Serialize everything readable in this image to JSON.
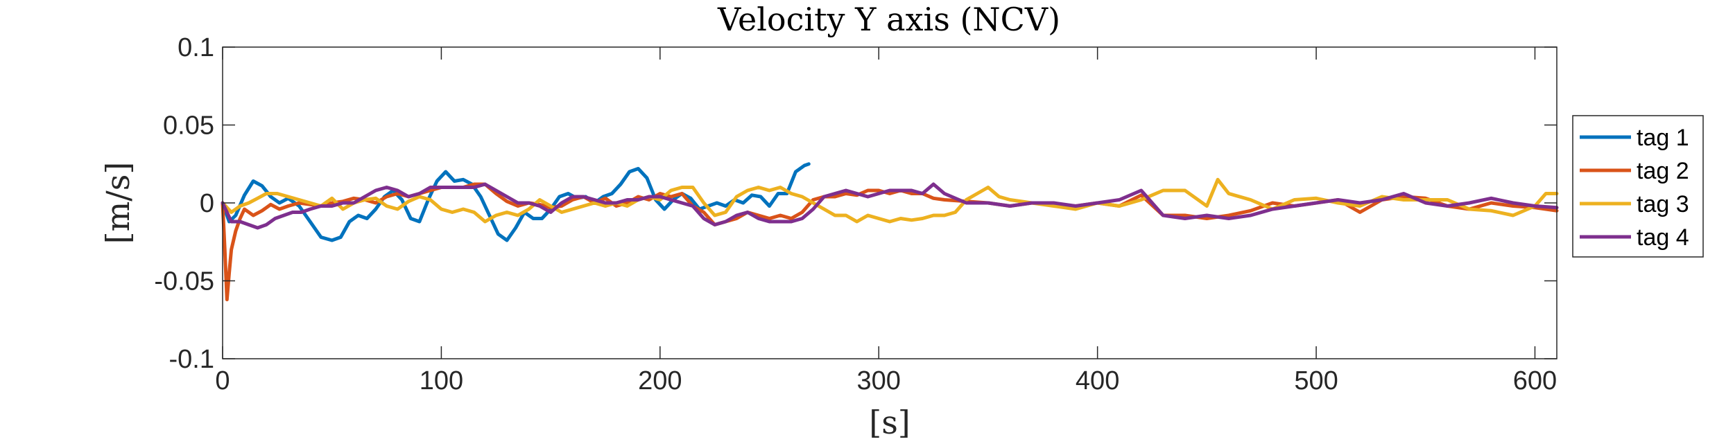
{
  "chart_data": {
    "type": "line",
    "title": "Velocity Y axis (NCV)",
    "xlabel": "[s]",
    "ylabel": "[m/s]",
    "xlim": [
      0,
      610
    ],
    "ylim": [
      -0.1,
      0.1
    ],
    "xticks": [
      0,
      100,
      200,
      300,
      400,
      500,
      600
    ],
    "yticks": [
      -0.1,
      -0.05,
      0,
      0.05,
      0.1
    ],
    "xtick_labels": [
      "0",
      "100",
      "200",
      "300",
      "400",
      "500",
      "600"
    ],
    "ytick_labels": [
      "-0.1",
      "-0.05",
      "0",
      "0.05",
      "0.1"
    ],
    "grid": false,
    "legend_position": "outside-right",
    "series": [
      {
        "name": "tag 1",
        "color": "#0072BD",
        "x": [
          0,
          3,
          6,
          10,
          14,
          18,
          22,
          26,
          30,
          35,
          40,
          45,
          50,
          54,
          58,
          62,
          66,
          70,
          74,
          78,
          82,
          86,
          90,
          94,
          98,
          102,
          106,
          110,
          114,
          118,
          122,
          126,
          130,
          134,
          138,
          142,
          146,
          150,
          154,
          158,
          162,
          166,
          170,
          174,
          178,
          182,
          186,
          190,
          194,
          198,
          202,
          206,
          210,
          214,
          218,
          222,
          226,
          230,
          234,
          238,
          242,
          246,
          250,
          254,
          258,
          262,
          266,
          268
        ],
        "y": [
          0,
          -0.012,
          -0.008,
          0.005,
          0.014,
          0.011,
          0.004,
          0.0,
          0.003,
          -0.002,
          -0.012,
          -0.022,
          -0.024,
          -0.022,
          -0.012,
          -0.008,
          -0.01,
          -0.004,
          0.004,
          0.008,
          0.002,
          -0.01,
          -0.012,
          0.002,
          0.014,
          0.02,
          0.014,
          0.015,
          0.012,
          0.004,
          -0.008,
          -0.02,
          -0.024,
          -0.016,
          -0.006,
          -0.01,
          -0.01,
          -0.004,
          0.004,
          0.006,
          0.003,
          0.004,
          0.0,
          0.004,
          0.006,
          0.012,
          0.02,
          0.022,
          0.016,
          0.002,
          -0.004,
          0.002,
          0.006,
          0.003,
          -0.004,
          -0.002,
          0.0,
          -0.002,
          0.002,
          0.0,
          0.005,
          0.004,
          -0.002,
          0.006,
          0.006,
          0.02,
          0.024,
          0.025
        ]
      },
      {
        "name": "tag 2",
        "color": "#D95319",
        "x": [
          0,
          1,
          2,
          3,
          4,
          6,
          8,
          10,
          14,
          18,
          22,
          26,
          30,
          35,
          40,
          45,
          50,
          55,
          60,
          65,
          70,
          75,
          80,
          85,
          90,
          95,
          100,
          105,
          110,
          115,
          120,
          125,
          130,
          135,
          140,
          145,
          150,
          155,
          160,
          165,
          170,
          175,
          180,
          185,
          190,
          195,
          200,
          205,
          210,
          215,
          220,
          225,
          230,
          235,
          240,
          245,
          250,
          255,
          260,
          265,
          270,
          275,
          280,
          285,
          290,
          295,
          300,
          305,
          310,
          315,
          320,
          325,
          330,
          340,
          350,
          360,
          370,
          380,
          390,
          400,
          410,
          420,
          430,
          440,
          450,
          460,
          470,
          480,
          490,
          500,
          510,
          520,
          530,
          540,
          550,
          560,
          570,
          580,
          590,
          600,
          610
        ],
        "y": [
          0,
          -0.03,
          -0.062,
          -0.045,
          -0.03,
          -0.018,
          -0.01,
          -0.004,
          -0.008,
          -0.005,
          -0.001,
          -0.004,
          -0.002,
          0.0,
          -0.001,
          -0.002,
          0.0,
          0.001,
          0.003,
          0.002,
          0.0,
          0.004,
          0.006,
          0.004,
          0.006,
          0.008,
          0.01,
          0.01,
          0.01,
          0.012,
          0.012,
          0.006,
          0.001,
          -0.002,
          0.0,
          -0.001,
          -0.003,
          -0.002,
          0.002,
          0.004,
          0.0,
          0.003,
          -0.002,
          0.0,
          0.004,
          0.002,
          0.006,
          0.004,
          0.006,
          -0.002,
          -0.006,
          -0.014,
          -0.012,
          -0.01,
          -0.006,
          -0.008,
          -0.01,
          -0.008,
          -0.01,
          -0.006,
          0.002,
          0.004,
          0.004,
          0.006,
          0.005,
          0.008,
          0.008,
          0.006,
          0.008,
          0.006,
          0.006,
          0.003,
          0.002,
          0.001,
          0.0,
          -0.002,
          0.0,
          -0.001,
          -0.002,
          0.0,
          -0.002,
          0.005,
          -0.008,
          -0.008,
          -0.01,
          -0.008,
          -0.005,
          0.0,
          -0.002,
          0.0,
          0.002,
          -0.006,
          0.002,
          0.004,
          0.003,
          -0.002,
          -0.004,
          0.0,
          -0.002,
          -0.003,
          -0.005
        ]
      },
      {
        "name": "tag 3",
        "color": "#EDB120",
        "x": [
          0,
          4,
          8,
          12,
          16,
          20,
          25,
          30,
          35,
          40,
          45,
          50,
          55,
          60,
          65,
          70,
          75,
          80,
          85,
          90,
          95,
          100,
          105,
          110,
          115,
          120,
          125,
          130,
          135,
          140,
          145,
          150,
          155,
          160,
          165,
          170,
          175,
          180,
          185,
          190,
          195,
          200,
          205,
          210,
          215,
          220,
          225,
          230,
          235,
          240,
          245,
          250,
          255,
          260,
          265,
          270,
          275,
          280,
          285,
          290,
          295,
          300,
          305,
          310,
          315,
          320,
          325,
          330,
          335,
          340,
          345,
          350,
          355,
          360,
          370,
          380,
          390,
          400,
          410,
          420,
          430,
          440,
          450,
          455,
          460,
          470,
          480,
          490,
          500,
          510,
          520,
          530,
          540,
          550,
          560,
          570,
          580,
          590,
          600,
          605,
          610
        ],
        "y": [
          0,
          -0.006,
          -0.002,
          0.0,
          0.003,
          0.006,
          0.006,
          0.004,
          0.002,
          0.0,
          -0.002,
          0.003,
          -0.004,
          0.0,
          0.002,
          0.003,
          -0.002,
          -0.004,
          0.001,
          0.004,
          0.002,
          -0.004,
          -0.006,
          -0.004,
          -0.006,
          -0.012,
          -0.008,
          -0.006,
          -0.008,
          -0.004,
          0.002,
          -0.002,
          -0.006,
          -0.004,
          -0.002,
          0.0,
          -0.002,
          0.0,
          -0.002,
          0.002,
          0.004,
          0.002,
          0.008,
          0.01,
          0.01,
          0.0,
          -0.008,
          -0.006,
          0.004,
          0.008,
          0.01,
          0.008,
          0.01,
          0.006,
          0.004,
          0.0,
          -0.004,
          -0.008,
          -0.008,
          -0.012,
          -0.008,
          -0.01,
          -0.012,
          -0.01,
          -0.011,
          -0.01,
          -0.008,
          -0.008,
          -0.006,
          0.002,
          0.006,
          0.01,
          0.004,
          0.002,
          0.0,
          -0.002,
          -0.004,
          0.0,
          -0.002,
          0.002,
          0.008,
          0.008,
          -0.002,
          0.015,
          0.006,
          0.002,
          -0.004,
          0.002,
          0.003,
          0.0,
          -0.002,
          0.004,
          0.002,
          0.002,
          0.002,
          -0.004,
          -0.005,
          -0.008,
          -0.002,
          0.006,
          0.006
        ]
      },
      {
        "name": "tag 4",
        "color": "#7E2F8E",
        "x": [
          0,
          4,
          8,
          12,
          16,
          20,
          24,
          28,
          32,
          36,
          40,
          45,
          50,
          55,
          60,
          65,
          70,
          75,
          80,
          85,
          90,
          95,
          100,
          105,
          110,
          115,
          120,
          125,
          130,
          135,
          140,
          145,
          150,
          155,
          160,
          165,
          170,
          175,
          180,
          185,
          190,
          195,
          200,
          205,
          210,
          215,
          220,
          225,
          230,
          235,
          240,
          245,
          250,
          255,
          260,
          265,
          270,
          275,
          280,
          285,
          290,
          295,
          300,
          305,
          310,
          315,
          320,
          325,
          330,
          340,
          350,
          360,
          370,
          380,
          390,
          400,
          410,
          420,
          430,
          440,
          450,
          460,
          470,
          480,
          490,
          500,
          510,
          520,
          530,
          540,
          550,
          560,
          570,
          580,
          590,
          600,
          610
        ],
        "y": [
          0,
          -0.012,
          -0.012,
          -0.014,
          -0.016,
          -0.014,
          -0.01,
          -0.008,
          -0.006,
          -0.006,
          -0.004,
          -0.002,
          -0.002,
          0.0,
          0.0,
          0.004,
          0.008,
          0.01,
          0.008,
          0.004,
          0.006,
          0.01,
          0.01,
          0.01,
          0.01,
          0.01,
          0.012,
          0.008,
          0.004,
          0.0,
          0.0,
          -0.002,
          -0.006,
          0.0,
          0.004,
          0.004,
          0.002,
          0.0,
          0.0,
          0.002,
          0.002,
          0.004,
          0.004,
          0.002,
          0.0,
          -0.002,
          -0.01,
          -0.014,
          -0.012,
          -0.008,
          -0.006,
          -0.01,
          -0.012,
          -0.012,
          -0.012,
          -0.01,
          -0.004,
          0.004,
          0.006,
          0.008,
          0.006,
          0.004,
          0.006,
          0.008,
          0.008,
          0.008,
          0.006,
          0.012,
          0.006,
          0.0,
          0.0,
          -0.002,
          0.0,
          0.0,
          -0.002,
          0.0,
          0.002,
          0.008,
          -0.008,
          -0.01,
          -0.008,
          -0.01,
          -0.008,
          -0.004,
          -0.002,
          0.0,
          0.002,
          0.0,
          0.002,
          0.006,
          0.0,
          -0.002,
          0.0,
          0.003,
          0.0,
          -0.002,
          -0.003
        ]
      }
    ]
  }
}
